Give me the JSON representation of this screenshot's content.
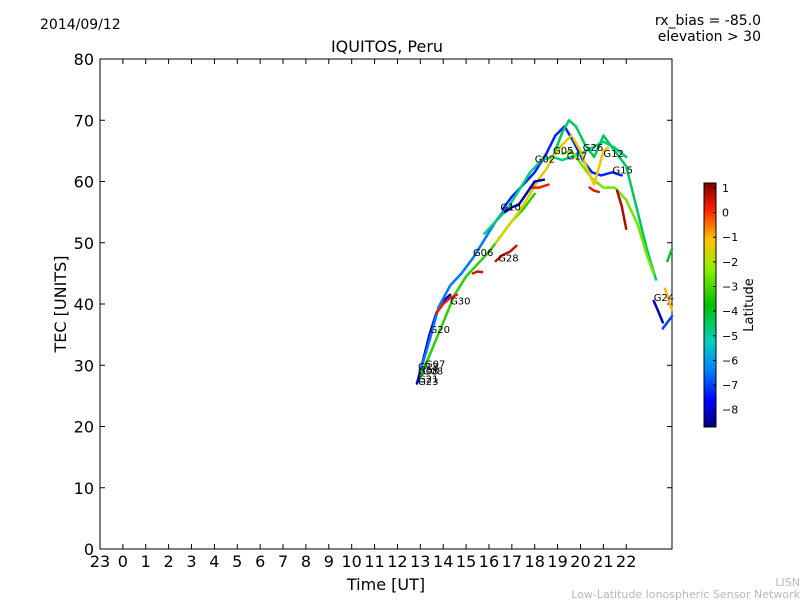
{
  "header": {
    "date": "2014/09/12",
    "rx_bias": "rx_bias = -85.0",
    "elevation": "elevation > 30"
  },
  "footer": {
    "line1": "LISN",
    "line2": "Low-Latitude Ionospheric Sensor Network"
  },
  "chart_data": {
    "type": "scatter",
    "title": "IQUITOS, Peru",
    "xlabel": "Time [UT]",
    "ylabel": "TEC [UNITS]",
    "ylim": [
      0,
      80
    ],
    "yticks": [
      0,
      10,
      20,
      30,
      40,
      50,
      60,
      70,
      80
    ],
    "xlim": [
      -1,
      24
    ],
    "xtick_labels": [
      "23",
      "0",
      "1",
      "2",
      "3",
      "4",
      "5",
      "6",
      "7",
      "8",
      "9",
      "10",
      "11",
      "12",
      "13",
      "14",
      "15",
      "16",
      "17",
      "18",
      "19",
      "20",
      "21",
      "22"
    ],
    "colorbar": {
      "label": "Latitude",
      "min": -8.7,
      "max": 1.2,
      "ticks": [
        1,
        0,
        -1,
        -2,
        -3,
        -4,
        -5,
        -6,
        -7,
        -8
      ]
    },
    "satellite_labels": [
      {
        "name": "G07",
        "x": 13.2,
        "y": 29.6
      },
      {
        "name": "G13",
        "x": 12.9,
        "y": 29.2
      },
      {
        "name": "G08",
        "x": 12.9,
        "y": 28.5
      },
      {
        "name": "G08",
        "x": 13.1,
        "y": 28.5
      },
      {
        "name": "G21",
        "x": 12.9,
        "y": 27.2
      },
      {
        "name": "G23",
        "x": 12.9,
        "y": 26.8
      },
      {
        "name": "G20",
        "x": 13.4,
        "y": 35.3
      },
      {
        "name": "G30",
        "x": 14.3,
        "y": 39.9
      },
      {
        "name": "G06",
        "x": 15.3,
        "y": 47.8
      },
      {
        "name": "G28",
        "x": 16.4,
        "y": 46.9
      },
      {
        "name": "G10",
        "x": 16.5,
        "y": 55.3
      },
      {
        "name": "G02",
        "x": 18.0,
        "y": 63.1
      },
      {
        "name": "G05",
        "x": 18.8,
        "y": 64.5
      },
      {
        "name": "G17",
        "x": 19.4,
        "y": 63.6
      },
      {
        "name": "G26",
        "x": 20.1,
        "y": 65.0
      },
      {
        "name": "G12",
        "x": 21.0,
        "y": 64.0
      },
      {
        "name": "G15",
        "x": 21.4,
        "y": 61.3
      },
      {
        "name": "G24",
        "x": 23.2,
        "y": 40.5
      }
    ],
    "series": [
      {
        "name": "lat_-8.0",
        "latitude": -8.0,
        "x": [
          12.85,
          13.1,
          13.4,
          13.7,
          14.0,
          14.3
        ],
        "y": [
          27.0,
          30.5,
          35.0,
          38.5,
          40.5,
          41.5
        ]
      },
      {
        "name": "lat_-6.5",
        "latitude": -6.5,
        "x": [
          13.0,
          13.4,
          13.8,
          14.3,
          14.8,
          15.3,
          15.8,
          16.3,
          16.7
        ],
        "y": [
          29.0,
          34.0,
          39.5,
          43.0,
          45.0,
          47.5,
          50.5,
          53.5,
          55.5
        ]
      },
      {
        "name": "lat_-7.3",
        "latitude": -7.3,
        "x": [
          16.6,
          17.0,
          17.5,
          18.0,
          18.5,
          18.9,
          19.3,
          19.7,
          20.1,
          20.5,
          20.9,
          21.4,
          21.8
        ],
        "y": [
          55.5,
          57.5,
          59.5,
          61.5,
          64.5,
          67.5,
          69.0,
          66.5,
          63.5,
          61.5,
          61.0,
          61.5,
          61.0
        ]
      },
      {
        "name": "lat_-4.8",
        "latitude": -4.8,
        "x": [
          15.8,
          16.3,
          16.8,
          17.3,
          17.8,
          18.3,
          18.8,
          19.2,
          19.6,
          20.0,
          20.5,
          21.0,
          21.5,
          22.0
        ],
        "y": [
          51.5,
          53.5,
          55.5,
          58.5,
          61.5,
          63.5,
          64.0,
          63.5,
          64.0,
          64.5,
          65.5,
          66.5,
          65.5,
          64.0
        ]
      },
      {
        "name": "lat_-4.5",
        "latitude": -4.5,
        "x": [
          18.8,
          19.2,
          19.5,
          19.8,
          20.2,
          20.6,
          21.0,
          21.5,
          22.0,
          22.5,
          22.9,
          23.3
        ],
        "y": [
          64.0,
          68.0,
          70.0,
          69.0,
          66.0,
          64.0,
          67.5,
          65.0,
          62.5,
          55.0,
          49.0,
          44.0
        ]
      },
      {
        "name": "lat_-3.3",
        "latitude": -3.3,
        "x": [
          13.0,
          13.5,
          14.0,
          14.5,
          15.0,
          15.5,
          16.0,
          16.5,
          17.0,
          17.5,
          18.0
        ],
        "y": [
          28.0,
          32.5,
          37.0,
          41.5,
          44.5,
          46.5,
          48.5,
          51.0,
          53.5,
          55.5,
          58.0
        ]
      },
      {
        "name": "lat_-2.6",
        "latitude": -2.6,
        "x": [
          19.2,
          19.6,
          20.0,
          20.5,
          21.0,
          21.5,
          22.0,
          22.5,
          22.9,
          23.2
        ],
        "y": [
          64.5,
          65.0,
          63.0,
          60.5,
          59.0,
          59.0,
          57.0,
          53.0,
          48.0,
          45.0
        ]
      },
      {
        "name": "lat_-1.5",
        "latitude": -1.5,
        "x": [
          16.3,
          16.8,
          17.3,
          17.8,
          18.2,
          18.5,
          18.8,
          19.2,
          19.6
        ],
        "y": [
          50.0,
          52.5,
          55.0,
          58.0,
          60.5,
          62.0,
          64.0,
          66.0,
          67.5
        ]
      },
      {
        "name": "lat_-1.3",
        "latitude": -1.3,
        "x": [
          19.7,
          20.0,
          20.3,
          20.6,
          21.0,
          21.2
        ],
        "y": [
          67.0,
          65.0,
          62.0,
          59.5,
          65.0,
          65.5
        ]
      },
      {
        "name": "lat_0.3",
        "latitude": 0.3,
        "x": [
          13.7,
          14.0,
          14.3,
          14.6
        ],
        "y": [
          38.5,
          40.0,
          41.0,
          41.5
        ]
      },
      {
        "name": "lat_0.6",
        "latitude": 0.6,
        "x": [
          16.3,
          16.6,
          16.9,
          17.2
        ],
        "y": [
          47.0,
          48.0,
          48.5,
          49.5
        ]
      },
      {
        "name": "lat_0.2",
        "latitude": 0.2,
        "x": [
          17.8,
          18.2,
          18.6
        ],
        "y": [
          59.0,
          59.0,
          59.5
        ]
      },
      {
        "name": "lat_0.4",
        "latitude": 0.4,
        "x": [
          20.4,
          20.6,
          20.8
        ],
        "y": [
          59.0,
          58.5,
          58.3
        ]
      },
      {
        "name": "lat_0.8",
        "latitude": 0.8,
        "x": [
          21.6,
          21.8,
          22.0
        ],
        "y": [
          58.5,
          56.0,
          52.3
        ]
      },
      {
        "name": "lat_0.5",
        "latitude": 0.5,
        "x": [
          15.3,
          15.5,
          15.7
        ],
        "y": [
          45.0,
          45.3,
          45.2
        ]
      },
      {
        "name": "lat_-8.3",
        "latitude": -8.3,
        "x": [
          16.7,
          17.0,
          17.3,
          18.0,
          18.4
        ],
        "y": [
          55.0,
          55.8,
          56.2,
          60.0,
          60.3
        ]
      },
      {
        "name": "lat_-8.2",
        "latitude": -8.2,
        "x": [
          23.2,
          23.4,
          23.6
        ],
        "y": [
          40.5,
          38.8,
          37.0
        ]
      },
      {
        "name": "lat_-7.0",
        "latitude": -7.0,
        "x": [
          23.6,
          23.8,
          24.0
        ],
        "y": [
          36.0,
          37.0,
          38.0
        ]
      },
      {
        "name": "lat_-1.0",
        "latitude": -1.0,
        "x": [
          23.7,
          24.0
        ],
        "y": [
          42.5,
          39.0
        ]
      },
      {
        "name": "lat_-4.0",
        "latitude": -4.0,
        "x": [
          23.8,
          24.0
        ],
        "y": [
          47.0,
          49.0
        ]
      }
    ]
  }
}
